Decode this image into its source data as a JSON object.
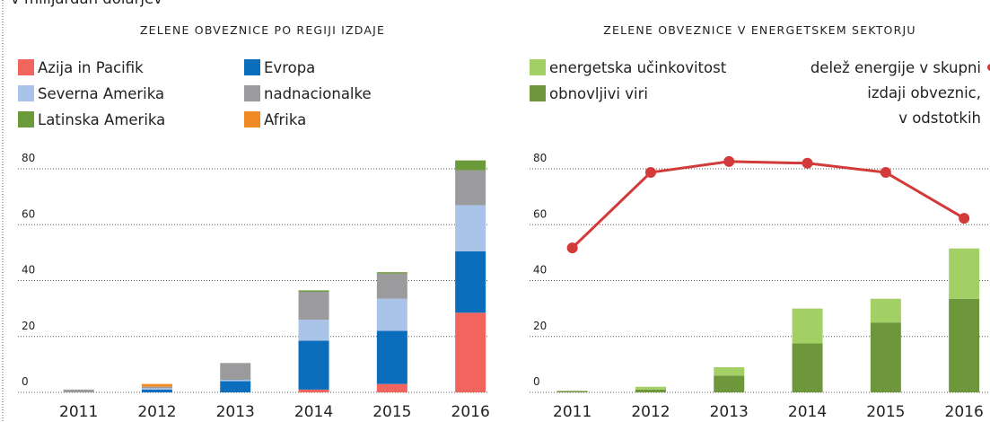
{
  "subtitle": "v milijardah dolarjev",
  "chart_data": [
    {
      "type": "stacked-bar",
      "title": "ZELENE OBVEZNICE PO REGIJI IZDAJE",
      "categories": [
        "2011",
        "2012",
        "2013",
        "2014",
        "2015",
        "2016"
      ],
      "ylim": [
        0,
        80
      ],
      "yticks": [
        0,
        20,
        40,
        60,
        80
      ],
      "grid": true,
      "series": [
        {
          "name": "Azija in Pacifik",
          "color": "#f2655f",
          "values": [
            0,
            0,
            0,
            1,
            3,
            28.5
          ]
        },
        {
          "name": "Evropa",
          "color": "#0a6ebd",
          "values": [
            0,
            1,
            4,
            17.5,
            19,
            22
          ]
        },
        {
          "name": "Severna Amerika",
          "color": "#a9c4e8",
          "values": [
            0,
            0.5,
            0.5,
            7.5,
            11.5,
            16.5
          ]
        },
        {
          "name": "nadnacionalke",
          "color": "#9b9b9d",
          "values": [
            1,
            0.5,
            6,
            10,
            9,
            12.5
          ]
        },
        {
          "name": "Latinska Amerika",
          "color": "#6a9a3a",
          "values": [
            0,
            0,
            0,
            0.5,
            0.5,
            3.5
          ]
        },
        {
          "name": "Afrika",
          "color": "#f08a24",
          "values": [
            0,
            1,
            0,
            0,
            0,
            0
          ]
        }
      ]
    },
    {
      "type": "stacked-bar-line",
      "title": "ZELENE OBVEZNICE V ENERGETSKEM SEKTORJU",
      "categories": [
        "2011",
        "2012",
        "2013",
        "2014",
        "2015",
        "2016"
      ],
      "ylim": [
        0,
        80
      ],
      "yticks": [
        0,
        20,
        40,
        60,
        80
      ],
      "grid": true,
      "legend_order": "reversed",
      "series": [
        {
          "name": "obnovljivi viri",
          "color": "#6e963a",
          "values": [
            0.5,
            1,
            6,
            17.5,
            25,
            33.5
          ]
        },
        {
          "name": "energetska učinkovitost",
          "color": "#a3d065",
          "values": [
            0,
            1,
            3,
            12.5,
            8.5,
            18
          ]
        },
        {
          "name": [
            "delež energije v skupni",
            "izdaji obveznic,",
            "v odstotkih"
          ],
          "color": "#d33a3a",
          "type": "line",
          "values": [
            51.7,
            78.7,
            82.6,
            82,
            78.7,
            62.3
          ]
        }
      ]
    }
  ]
}
